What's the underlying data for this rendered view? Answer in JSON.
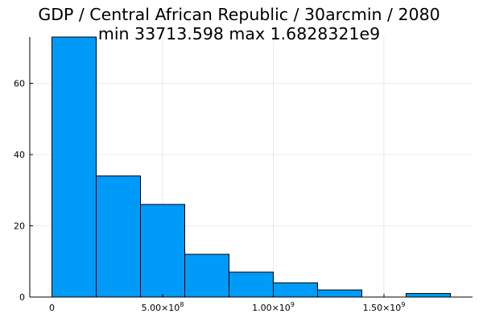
{
  "chart_data": {
    "type": "bar",
    "title": "GDP / Central African Republic / 30arcmin / 2080",
    "subtitle": "min 33713.598  max 1.6828321e9",
    "xlabel": "",
    "ylabel": "",
    "bin_edges": [
      0,
      200000000,
      400000000,
      600000000,
      800000000,
      1000000000,
      1200000000,
      1400000000,
      1600000000,
      1800000000
    ],
    "values": [
      73,
      34,
      26,
      12,
      7,
      4,
      2,
      0,
      1
    ],
    "xlim": [
      -100000000,
      1900000000
    ],
    "ylim": [
      0,
      73
    ],
    "xticks": [
      {
        "value": 0,
        "mantissa": "0",
        "exp": ""
      },
      {
        "value": 500000000,
        "mantissa": "5.00×10",
        "exp": "8"
      },
      {
        "value": 1000000000,
        "mantissa": "1.00×10",
        "exp": "9"
      },
      {
        "value": 1500000000,
        "mantissa": "1.50×10",
        "exp": "9"
      }
    ],
    "yticks": [
      0,
      20,
      40,
      60
    ],
    "grid": true,
    "legend": "none",
    "bar_color": "#009af9"
  }
}
